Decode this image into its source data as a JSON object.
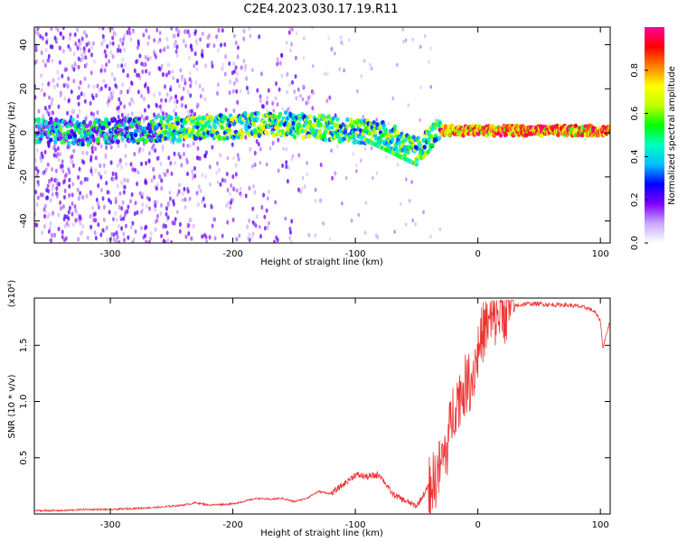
{
  "figure": {
    "title": "C2E4.2023.030.17.19.R11"
  },
  "chart_data": [
    {
      "type": "heatmap",
      "xlabel": "Height of straight line (km)",
      "ylabel": "Frequency (Hz)",
      "xlim": [
        -362,
        108
      ],
      "ylim": [
        -50,
        48
      ],
      "x_ticks": [
        -300,
        -200,
        -100,
        0,
        100
      ],
      "y_ticks": [
        -40,
        -20,
        0,
        20,
        40
      ],
      "grid": false,
      "colorbar": {
        "label": "Normalized spectral amplitude",
        "range": [
          0,
          1
        ],
        "ticks": [
          0.0,
          0.2,
          0.4,
          0.6,
          0.8
        ],
        "colors": [
          "#ffffff",
          "#c8a8ff",
          "#8000ff",
          "#0000ff",
          "#00c0ff",
          "#00ffc0",
          "#00ff00",
          "#c0ff00",
          "#ffff00",
          "#ff8000",
          "#ff0000",
          "#ff00a0"
        ]
      },
      "ridge": {
        "x": [
          -360,
          -340,
          -320,
          -300,
          -280,
          -260,
          -240,
          -220,
          -200,
          -180,
          -160,
          -140,
          -120,
          -100,
          -80,
          -70,
          -60,
          -50,
          -45,
          -40,
          -30,
          -20,
          -10,
          0,
          20,
          40,
          60,
          80,
          100,
          108
        ],
        "y": [
          1,
          1,
          0,
          1,
          1,
          2,
          2,
          2,
          3,
          4,
          4,
          3,
          2,
          1,
          0,
          -2,
          -5,
          -8,
          -6,
          -3,
          1,
          1,
          1,
          1,
          1,
          1,
          1,
          1,
          1,
          1
        ]
      }
    },
    {
      "type": "line",
      "xlabel": "Height of straight line (km)",
      "ylabel": "SNR (10 * v/v)",
      "y_multiplier": "(x10⁴)",
      "xlim": [
        -362,
        108
      ],
      "ylim": [
        0,
        1.92
      ],
      "x_ticks": [
        -300,
        -200,
        -100,
        0,
        100
      ],
      "y_ticks": [
        0.5,
        1.0,
        1.5
      ],
      "y_tick_labels": [
        "0.5",
        "1.0",
        "1.5"
      ],
      "grid": false,
      "series": [
        {
          "color": "#ee3333",
          "x": [
            -362,
            -340,
            -320,
            -300,
            -280,
            -260,
            -240,
            -230,
            -220,
            -200,
            -180,
            -170,
            -160,
            -150,
            -140,
            -130,
            -120,
            -110,
            -100,
            -90,
            -80,
            -70,
            -60,
            -50,
            -40,
            -35,
            -30,
            -25,
            -20,
            -15,
            -10,
            -5,
            0,
            5,
            10,
            15,
            20,
            30,
            40,
            50,
            60,
            70,
            80,
            90,
            95,
            100,
            102,
            108
          ],
          "y": [
            0.03,
            0.03,
            0.04,
            0.04,
            0.05,
            0.06,
            0.08,
            0.1,
            0.08,
            0.09,
            0.14,
            0.13,
            0.14,
            0.11,
            0.14,
            0.2,
            0.18,
            0.26,
            0.35,
            0.33,
            0.35,
            0.18,
            0.12,
            0.07,
            0.25,
            0.3,
            0.45,
            0.6,
            0.95,
            1.05,
            1.15,
            1.2,
            1.45,
            1.65,
            1.7,
            1.75,
            1.82,
            1.85,
            1.87,
            1.87,
            1.86,
            1.86,
            1.85,
            1.83,
            1.8,
            1.72,
            1.48,
            1.72
          ]
        }
      ]
    }
  ]
}
